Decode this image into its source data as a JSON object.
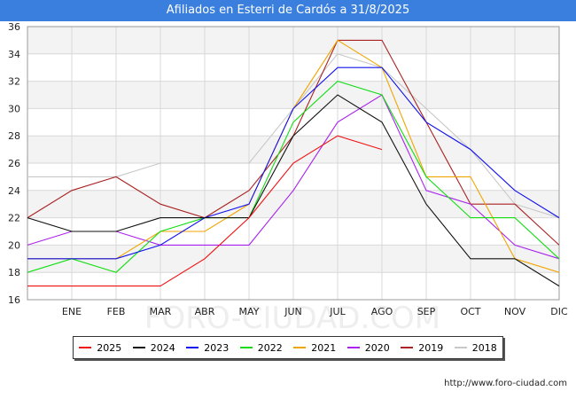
{
  "header": {
    "title": "Afiliados en Esterri de Cardós a 31/8/2025"
  },
  "footer": {
    "url": "http://www.foro-ciudad.com"
  },
  "watermark": "FORO-CIUDAD.COM",
  "chart_data": {
    "type": "line",
    "title": "Afiliados en Esterri de Cardós a 31/8/2025",
    "xlabel": "",
    "ylabel": "",
    "categories": [
      "",
      "ENE",
      "FEB",
      "MAR",
      "ABR",
      "MAY",
      "JUN",
      "JUL",
      "AGO",
      "SEP",
      "OCT",
      "NOV",
      "DIC"
    ],
    "ylim": [
      16,
      36
    ],
    "yticks": [
      16,
      18,
      20,
      22,
      24,
      26,
      28,
      30,
      32,
      34,
      36
    ],
    "grid": true,
    "legend_position": "bottom",
    "series": [
      {
        "name": "2025",
        "color": "#ee1111",
        "values": [
          17,
          17,
          17,
          17,
          19,
          22,
          26,
          28,
          27,
          null,
          null,
          null,
          null
        ]
      },
      {
        "name": "2024",
        "color": "#111111",
        "values": [
          22,
          21,
          21,
          22,
          22,
          22,
          28,
          31,
          29,
          23,
          19,
          19,
          17
        ]
      },
      {
        "name": "2023",
        "color": "#1111ee",
        "values": [
          19,
          19,
          19,
          20,
          22,
          23,
          30,
          33,
          33,
          29,
          27,
          24,
          22
        ]
      },
      {
        "name": "2022",
        "color": "#11dd11",
        "values": [
          18,
          19,
          18,
          21,
          22,
          22,
          29,
          32,
          31,
          25,
          22,
          22,
          19
        ]
      },
      {
        "name": "2021",
        "color": "#f0a500",
        "values": [
          19,
          19,
          19,
          21,
          21,
          23,
          30,
          35,
          33,
          25,
          25,
          19,
          18
        ]
      },
      {
        "name": "2020",
        "color": "#aa22ee",
        "values": [
          20,
          21,
          21,
          20,
          20,
          20,
          24,
          29,
          31,
          24,
          23,
          20,
          19
        ]
      },
      {
        "name": "2019",
        "color": "#aa2222",
        "values": [
          22,
          24,
          25,
          23,
          22,
          24,
          28,
          35,
          35,
          29,
          23,
          23,
          20
        ]
      },
      {
        "name": "2018",
        "color": "#c8c8c8",
        "values": [
          25,
          25,
          25,
          26,
          26,
          26,
          30,
          34,
          33,
          30,
          27,
          23,
          22
        ]
      }
    ]
  }
}
